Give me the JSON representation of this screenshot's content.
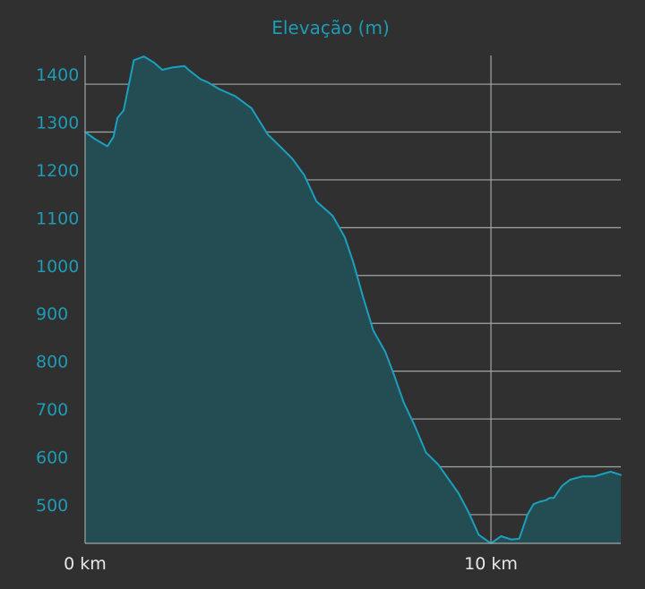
{
  "chart_data": {
    "type": "area",
    "title": "Elevação (m)",
    "xlabel": "",
    "ylabel": "",
    "xlim": [
      0,
      13.2
    ],
    "ylim": [
      440,
      1460
    ],
    "grid": "horizontal lines at y ticks, vertical line at 10 km",
    "colors": {
      "background": "#303030",
      "line": "#1aa0be",
      "fill": "#244d53",
      "title": "#1e9bb5",
      "y_tick_labels": "#1e9bb5",
      "x_tick_labels": "#e8e8e8",
      "gridlines": "#9fa6a8"
    },
    "y_ticks": [
      {
        "value": 500,
        "label": "500"
      },
      {
        "value": 600,
        "label": "600"
      },
      {
        "value": 700,
        "label": "700"
      },
      {
        "value": 800,
        "label": "800"
      },
      {
        "value": 900,
        "label": "900"
      },
      {
        "value": 1000,
        "label": "1000"
      },
      {
        "value": 1100,
        "label": "1100"
      },
      {
        "value": 1200,
        "label": "1200"
      },
      {
        "value": 1300,
        "label": "1300"
      },
      {
        "value": 1400,
        "label": "1400"
      }
    ],
    "x_ticks": [
      {
        "value": 0,
        "label": "0 km"
      },
      {
        "value": 10,
        "label": "10 km"
      }
    ],
    "series": [
      {
        "x": [
          0,
          0.25,
          0.55,
          0.7,
          0.8,
          0.95,
          1.2,
          1.45,
          1.7,
          1.9,
          2.15,
          2.45,
          2.55,
          2.85,
          3.0,
          3.3,
          3.7,
          4.1,
          4.5,
          4.8,
          5.1,
          5.4,
          5.7,
          6.1,
          6.4,
          6.6,
          6.85,
          7.1,
          7.4,
          7.6,
          7.85,
          8.1,
          8.4,
          8.7,
          8.95,
          9.2,
          9.45,
          9.7,
          10.0,
          10.25,
          10.5,
          10.7,
          10.9,
          11.05,
          11.2,
          11.35,
          11.45,
          11.55,
          11.75,
          11.95,
          12.25,
          12.55,
          12.75,
          12.95,
          13.2
        ],
        "y": [
          1300,
          1285,
          1270,
          1290,
          1330,
          1345,
          1450,
          1458,
          1445,
          1430,
          1435,
          1438,
          1430,
          1410,
          1405,
          1390,
          1375,
          1350,
          1295,
          1270,
          1245,
          1210,
          1155,
          1125,
          1080,
          1030,
          955,
          885,
          840,
          795,
          735,
          690,
          630,
          605,
          575,
          545,
          505,
          458,
          440,
          455,
          448,
          450,
          500,
          522,
          527,
          530,
          535,
          535,
          560,
          573,
          580,
          580,
          585,
          590,
          583
        ]
      }
    ]
  }
}
